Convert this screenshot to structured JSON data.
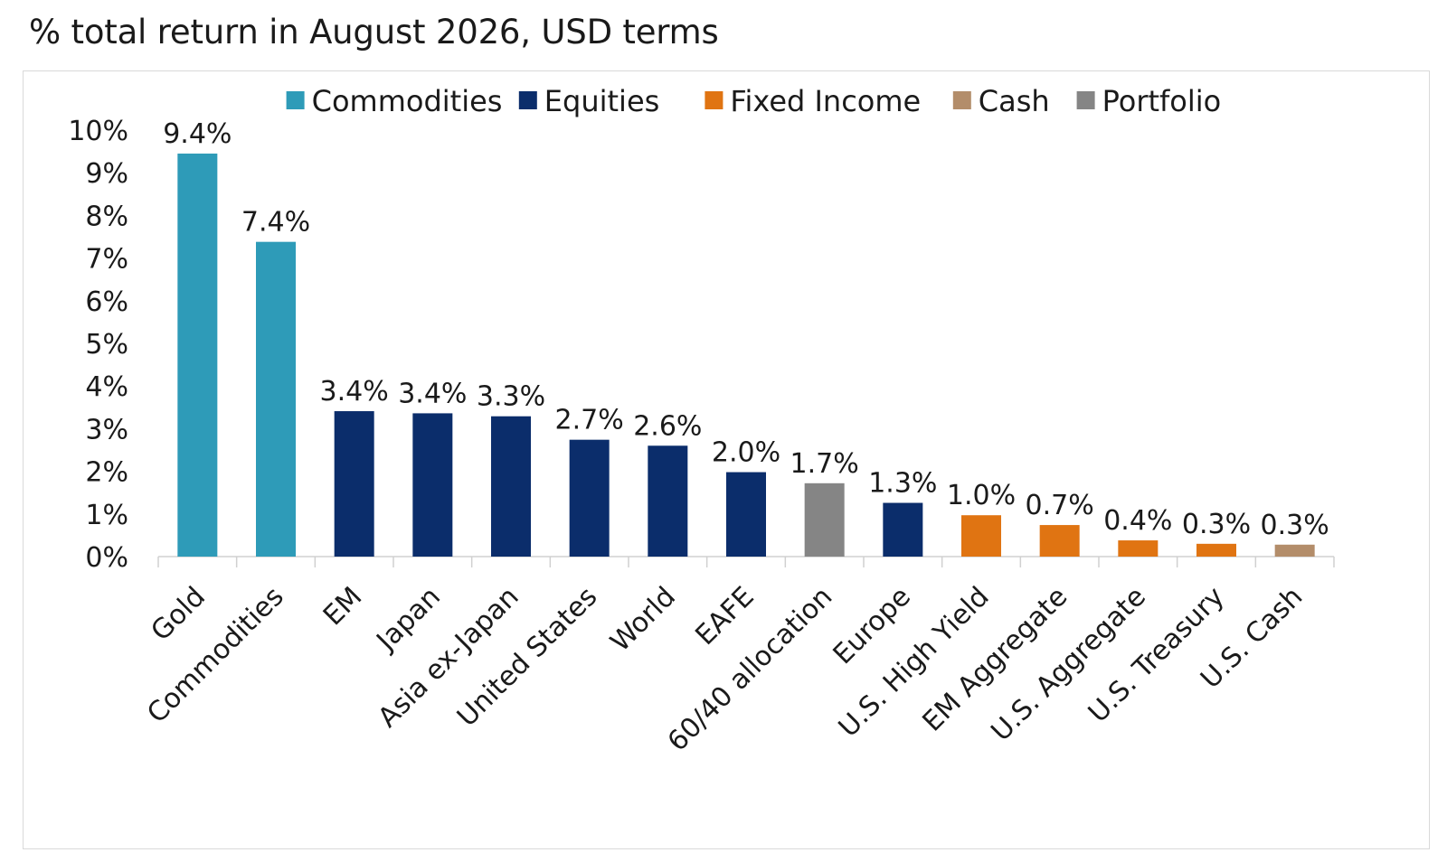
{
  "title": "% total return in August 2026, USD terms",
  "colors": {
    "Commodities": "#2e9bb8",
    "Equities": "#0b2d6b",
    "Fixed Income": "#e07412",
    "Cash": "#b38d6a",
    "Portfolio": "#858585"
  },
  "chart_data": {
    "type": "bar",
    "title": "% total return in August 2026, USD terms",
    "xlabel": "",
    "ylabel": "",
    "ylim": [
      0,
      10
    ],
    "yticks": [
      "0%",
      "1%",
      "2%",
      "3%",
      "4%",
      "5%",
      "6%",
      "7%",
      "8%",
      "9%",
      "10%"
    ],
    "grid": false,
    "legend_position": "top",
    "legend": [
      "Commodities",
      "Equities",
      "Fixed Income",
      "Cash",
      "Portfolio"
    ],
    "categories": [
      "Gold",
      "Commodities",
      "EM",
      "Japan",
      "Asia ex-Japan",
      "United States",
      "World",
      "EAFE",
      "60/40 allocation",
      "Europe",
      "U.S. High Yield",
      "EM Aggregate",
      "U.S. Aggregate",
      "U.S. Treasury",
      "U.S. Cash"
    ],
    "values": [
      9.45,
      7.38,
      3.41,
      3.36,
      3.29,
      2.74,
      2.6,
      1.98,
      1.72,
      1.26,
      0.97,
      0.74,
      0.38,
      0.3,
      0.28
    ],
    "value_labels": [
      "9.4%",
      "7.4%",
      "3.4%",
      "3.4%",
      "3.3%",
      "2.7%",
      "2.6%",
      "2.0%",
      "1.7%",
      "1.3%",
      "1.0%",
      "0.7%",
      "0.4%",
      "0.3%",
      "0.3%"
    ],
    "groups": [
      "Commodities",
      "Commodities",
      "Equities",
      "Equities",
      "Equities",
      "Equities",
      "Equities",
      "Equities",
      "Portfolio",
      "Equities",
      "Fixed Income",
      "Fixed Income",
      "Fixed Income",
      "Fixed Income",
      "Cash"
    ]
  }
}
